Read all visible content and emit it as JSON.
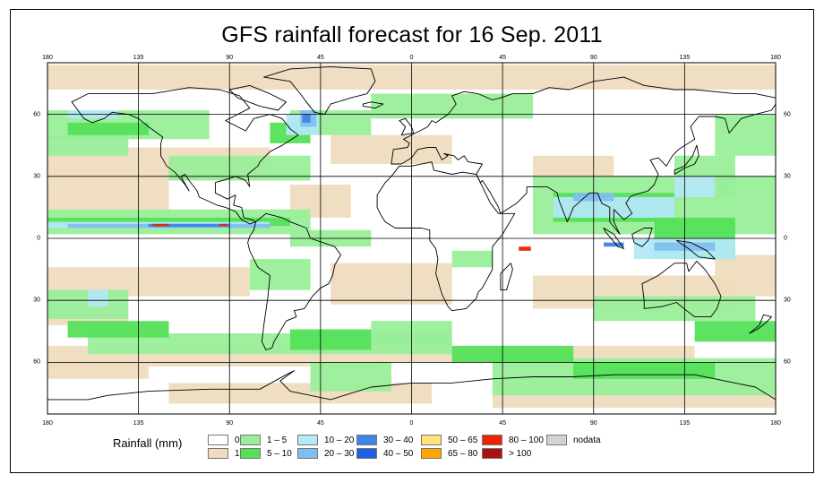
{
  "title": "GFS rainfall forecast for 16 Sep. 2011",
  "map": {
    "projection": "equirectangular",
    "lon_range": [
      -180,
      180
    ],
    "lat_range": [
      -85,
      85
    ],
    "lon_labels": [
      "180",
      "135",
      "90",
      "45",
      "0",
      "45",
      "90",
      "135",
      "180"
    ],
    "lon_values": [
      -180,
      -135,
      -90,
      -45,
      0,
      45,
      90,
      135,
      180
    ],
    "lat_labels": [
      "60",
      "30",
      "0",
      "30",
      "60"
    ],
    "lat_values": [
      60,
      30,
      0,
      -30,
      -60
    ],
    "gridlines": true,
    "colors": {
      "ocean": "#ffffff",
      "coastline": "#000000",
      "grid": "#000000"
    }
  },
  "legend": {
    "title": "Rainfall (mm)",
    "items": [
      {
        "label": "0",
        "color": "#ffffff"
      },
      {
        "label": "1",
        "color": "#efdcbf"
      },
      {
        "label": "1 – 5",
        "color": "#99ee99"
      },
      {
        "label": "5 – 10",
        "color": "#55e05a"
      },
      {
        "label": "10 – 20",
        "color": "#b3e8f5"
      },
      {
        "label": "20 – 30",
        "color": "#7fbfef"
      },
      {
        "label": "30 – 40",
        "color": "#3f82e8"
      },
      {
        "label": "40 – 50",
        "color": "#1f5fe0"
      },
      {
        "label": "50 – 65",
        "color": "#ffe07a"
      },
      {
        "label": "65 – 80",
        "color": "#ffa500"
      },
      {
        "label": "80 – 100",
        "color": "#ee2200"
      },
      {
        "label": "> 100",
        "color": "#aa1111"
      },
      {
        "label": "nodata",
        "color": "#d3d3d3"
      }
    ]
  }
}
